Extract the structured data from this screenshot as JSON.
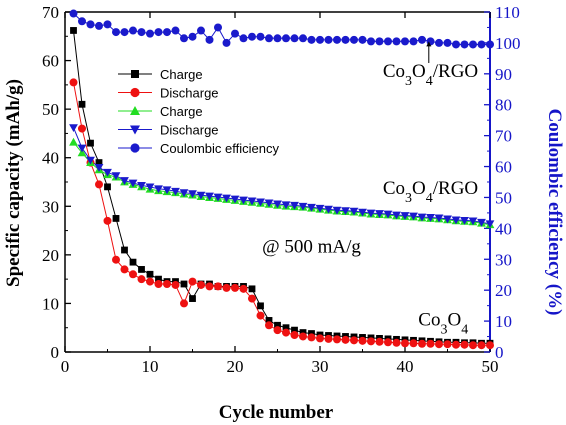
{
  "chart_data": {
    "type": "scatter",
    "title": "",
    "xlabel": "Cycle number",
    "ylabel": "Specific capacity (mAh/g)",
    "y2label": "Coulombic efficiency (%)",
    "xlim": [
      0,
      50
    ],
    "ylim": [
      0,
      70
    ],
    "y2lim": [
      0,
      110
    ],
    "xticks": [
      0,
      10,
      20,
      30,
      40,
      50
    ],
    "yticks": [
      0,
      10,
      20,
      30,
      40,
      50,
      60,
      70
    ],
    "y2ticks": [
      0,
      10,
      20,
      30,
      40,
      50,
      60,
      70,
      80,
      90,
      100,
      110
    ],
    "grid": false,
    "legend_position": "top-left",
    "colors": {
      "axis_left": "#000000",
      "axis_right": "#1515c8",
      "black": "#000000",
      "red": "#ee1111",
      "green": "#22dd22",
      "blue": "#1a1acc"
    },
    "x": [
      1,
      2,
      3,
      4,
      5,
      6,
      7,
      8,
      9,
      10,
      11,
      12,
      13,
      14,
      15,
      16,
      17,
      18,
      19,
      20,
      21,
      22,
      23,
      24,
      25,
      26,
      27,
      28,
      29,
      30,
      31,
      32,
      33,
      34,
      35,
      36,
      37,
      38,
      39,
      40,
      41,
      42,
      43,
      44,
      45,
      46,
      47,
      48,
      49,
      50
    ],
    "series": [
      {
        "name": "Charge",
        "marker": "square",
        "color": "#000000",
        "axis": "left",
        "values": [
          66.2,
          51,
          43,
          39,
          34,
          27.5,
          21,
          18.5,
          17,
          16,
          15,
          14.5,
          14.5,
          14,
          11,
          14,
          14,
          13.5,
          13.5,
          13.5,
          13.5,
          13,
          9.5,
          6.5,
          5.5,
          5,
          4.5,
          4,
          3.8,
          3.5,
          3.4,
          3.3,
          3.2,
          3.1,
          3,
          2.9,
          2.8,
          2.7,
          2.6,
          2.5,
          2.4,
          2.3,
          2.2,
          2.1,
          2,
          2,
          1.9,
          1.9,
          1.8,
          1.8
        ]
      },
      {
        "name": "Discharge",
        "marker": "circle",
        "color": "#ee1111",
        "axis": "left",
        "values": [
          55.5,
          46,
          39,
          34.5,
          27,
          19,
          17,
          16,
          15,
          14.5,
          14,
          14,
          13.8,
          10,
          14.5,
          13.8,
          13.5,
          13.5,
          13.2,
          13.2,
          13,
          11,
          7.5,
          5.5,
          4.5,
          4,
          3.5,
          3.2,
          3,
          2.8,
          2.7,
          2.6,
          2.5,
          2.4,
          2.3,
          2.2,
          2.1,
          2,
          1.9,
          1.8,
          1.8,
          1.7,
          1.7,
          1.6,
          1.6,
          1.5,
          1.5,
          1.4,
          1.4,
          1.4
        ]
      },
      {
        "name": "Charge",
        "marker": "triangle-up",
        "color": "#22dd22",
        "axis": "left",
        "values": [
          43.2,
          41,
          39,
          37.5,
          36.5,
          36,
          35,
          34.5,
          34,
          33.5,
          33.2,
          33,
          32.8,
          32.5,
          32.3,
          32,
          31.8,
          31.6,
          31.4,
          31.2,
          31,
          30.8,
          30.6,
          30.4,
          30.2,
          30,
          29.9,
          29.8,
          29.6,
          29.4,
          29.2,
          29,
          28.9,
          28.8,
          28.6,
          28.4,
          28.3,
          28.2,
          28,
          27.9,
          27.8,
          27.6,
          27.5,
          27.4,
          27.2,
          27,
          26.9,
          26.8,
          26.5,
          26.2
        ]
      },
      {
        "name": "Discharge",
        "marker": "triangle-down",
        "color": "#1a1acc",
        "axis": "left",
        "values": [
          46.2,
          42,
          39.5,
          38,
          37,
          36.3,
          35.3,
          34.8,
          34.3,
          34,
          33.6,
          33.4,
          33.1,
          32.8,
          32.6,
          32.3,
          32.1,
          31.9,
          31.7,
          31.5,
          31.3,
          31.1,
          30.9,
          30.7,
          30.5,
          30.3,
          30.2,
          30,
          29.8,
          29.6,
          29.4,
          29.2,
          29.1,
          29,
          28.8,
          28.6,
          28.5,
          28.4,
          28.2,
          28.1,
          28,
          27.8,
          27.7,
          27.6,
          27.4,
          27.2,
          27.1,
          27,
          26.7,
          26.4
        ]
      },
      {
        "name": "Coulombic efficiency",
        "marker": "circle",
        "color": "#1a1acc",
        "axis": "right",
        "values": [
          109.5,
          107,
          106,
          105.5,
          106,
          103.5,
          103.5,
          104,
          103.5,
          103,
          103.5,
          103.5,
          104,
          101.5,
          102,
          104,
          101,
          105,
          100,
          103,
          101.5,
          102,
          102,
          101.5,
          101.5,
          101.5,
          101.5,
          101.5,
          101,
          101,
          101,
          101,
          101,
          101,
          101,
          100.5,
          100.5,
          100.5,
          100.5,
          100.5,
          100.5,
          101,
          100.5,
          100,
          100,
          99.5,
          99.5,
          99.5,
          99.5,
          99.5
        ]
      }
    ],
    "annotations": [
      {
        "id": "rgo-top",
        "text": "Co3O4/RGO",
        "parts": [
          "Co",
          "3",
          "O",
          "4",
          "/RGO"
        ],
        "x": 43,
        "y2": 89
      },
      {
        "id": "rgo-mid",
        "text": "Co3O4/RGO",
        "parts": [
          "Co",
          "3",
          "O",
          "4",
          "/RGO"
        ],
        "x": 43,
        "y": 32.5
      },
      {
        "id": "rate",
        "text": "@ 500 mA/g",
        "parts": [
          "@ 500 mA/g"
        ],
        "x": 29,
        "y": 20.5
      },
      {
        "id": "co3o4",
        "text": "Co3O4",
        "parts": [
          "Co",
          "3",
          "O",
          "4"
        ],
        "x": 44.5,
        "y": 5.5
      }
    ],
    "arrow": {
      "x": 42.8,
      "y2_from": 93.5,
      "y2_to": 100.5
    }
  }
}
